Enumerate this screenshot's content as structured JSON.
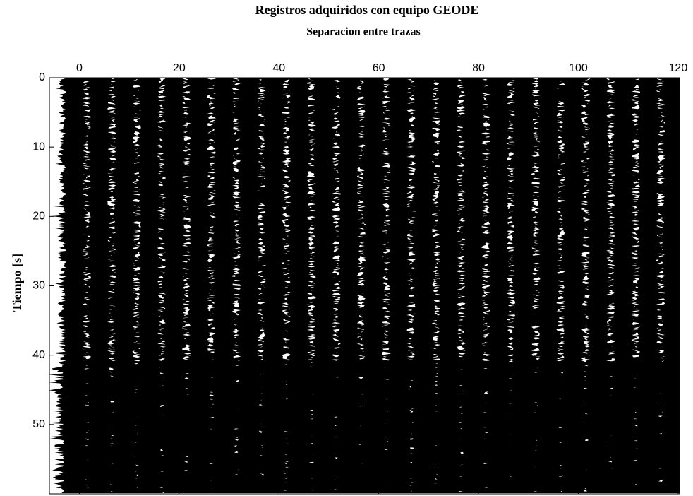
{
  "chart_data": {
    "type": "wiggle",
    "title": "Registros adquiridos con equipo GEODE",
    "x_label": "Separacion entre trazas",
    "y_label": "Tiempo [s]",
    "x_axis": "top",
    "y_inverted": true,
    "color": "#000000",
    "traces": [
      -1,
      4,
      9,
      14,
      19,
      24,
      29,
      34,
      39,
      44,
      49,
      54,
      59,
      64,
      69,
      74,
      79,
      84,
      89,
      94,
      99,
      104,
      109,
      114,
      119
    ],
    "xlim": [
      -6,
      120.3
    ],
    "xticks": [
      0,
      20,
      40,
      60,
      80,
      100,
      120
    ],
    "ylim": [
      0,
      60
    ],
    "yticks": [
      0,
      10,
      20,
      30,
      40,
      50
    ]
  }
}
